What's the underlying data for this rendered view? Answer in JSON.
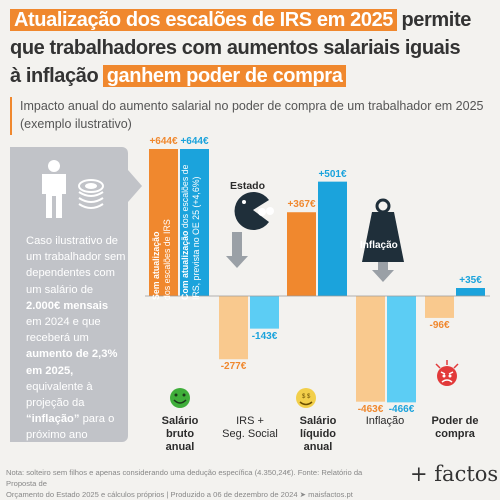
{
  "title": {
    "line1_highlight": "Atualização dos escalões de IRS em 2025",
    "line1_rest": "permite",
    "line2": "que trabalhadores com aumentos salariais iguais",
    "line3_start": "à inflação",
    "line3_highlight": "ganhem poder de compra"
  },
  "subtitle": "Impacto anual do aumento salarial no poder de compra de um trabalhador em 2025 (exemplo ilustrativo)",
  "panel": {
    "t1": "Caso ilustrativo de um trabalhador sem dependentes com um salário de ",
    "b1": "2.000€ mensais",
    "t2": " em 2024 e que receberá um ",
    "b2": "aumento de 2,3% em 2025,",
    "t3": " equivalente à projeção da ",
    "b3": "“inflação”",
    "t4": " para o próximo ano"
  },
  "icon_labels": {
    "estado": "Estado",
    "inflacao": "Inflação"
  },
  "chart_data": {
    "type": "bar",
    "categories": [
      "Salário bruto anual",
      "IRS + Seg. Social",
      "Salário líquido anual",
      "Inflação",
      "Poder de compra"
    ],
    "series": [
      {
        "name": "Sem atualização dos escalões de IRS",
        "values": [
          644,
          -277,
          367,
          -463,
          -96
        ],
        "labels": [
          "+644€",
          "-277€",
          "+367€",
          "-463€",
          "-96€"
        ]
      },
      {
        "name": "Com atualização dos escalões de IRS, prevista no OE 25 (+4,6%)",
        "values": [
          644,
          -143,
          501,
          -466,
          35
        ],
        "labels": [
          "+644€",
          "-143€",
          "+501€",
          "-466€",
          "+35€"
        ]
      }
    ],
    "bar_legend": [
      {
        "bold": "Sem atualização",
        "rest": "dos escalões de IRS"
      },
      {
        "bold": "Com atualização",
        "rest": "dos escalões de IRS, prevista no OE 25 (+4,6%)"
      }
    ],
    "colors": {
      "sem_positive": "#f0882e",
      "sem_negative": "#f9c98e",
      "com_positive": "#1ba3dc",
      "com_negative": "#5ccdf4"
    }
  },
  "categories_display": [
    {
      "l1": "Salário",
      "l2": "bruto",
      "l3": "anual",
      "bold": true
    },
    {
      "l1": "IRS +",
      "l2": "Seg. Social",
      "l3": "",
      "bold": false
    },
    {
      "l1": "Salário",
      "l2": "líquido",
      "l3": "anual",
      "bold": true
    },
    {
      "l1": "Inflação",
      "l2": "",
      "l3": "",
      "bold": false
    },
    {
      "l1": "Poder de",
      "l2": "compra",
      "l3": "",
      "bold": true
    }
  ],
  "footer": {
    "line1": "Nota: solteiro sem filhos e apenas considerando uma dedução específica (4.350,24€). Fonte: Relatório da Proposta de",
    "line2": "Orçamento do Estado 2025 e cálculos próprios  |  Produzido a 06 de dezembro de 2024 ➤ maisfactos.pt"
  },
  "brand": "+ factos"
}
